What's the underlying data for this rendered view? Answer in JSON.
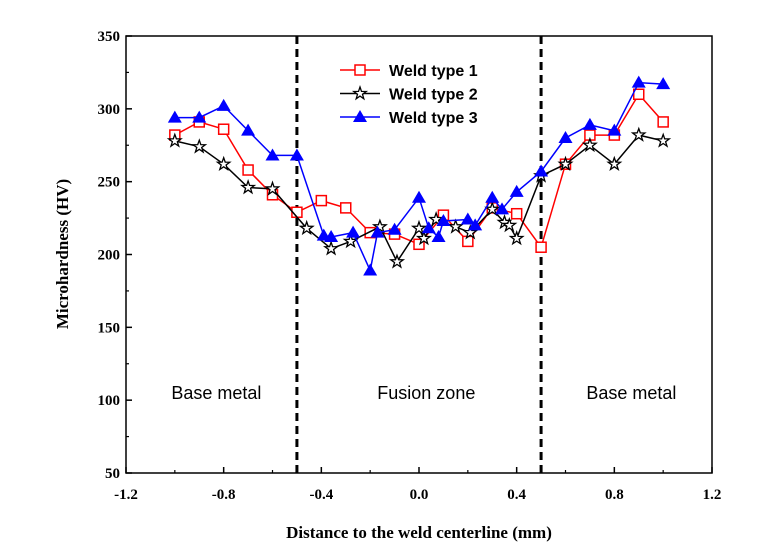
{
  "chart_data": {
    "type": "line",
    "title": "",
    "xlabel": "Distance to the weld centerline (mm)",
    "ylabel": "Microhardness (HV)",
    "xlim": [
      -1.2,
      1.2
    ],
    "ylim": [
      50,
      350
    ],
    "xticks": [
      "-1.2",
      "-0.8",
      "-0.4",
      "0.0",
      "0.4",
      "0.8",
      "1.2"
    ],
    "yticks": [
      "50",
      "100",
      "150",
      "200",
      "250",
      "300",
      "350"
    ],
    "grid": false,
    "legend_position": "top-center",
    "vlines": [
      -0.5,
      0.5
    ],
    "annotations": [
      {
        "text": "Base metal",
        "x": -0.83,
        "y": 105
      },
      {
        "text": "Fusion zone",
        "x": 0.03,
        "y": 105
      },
      {
        "text": "Base metal",
        "x": 0.87,
        "y": 105
      }
    ],
    "series": [
      {
        "name": "Weld type 1",
        "color": "#ff0000",
        "marker": "open-square",
        "x": [
          -1.0,
          -0.9,
          -0.8,
          -0.7,
          -0.6,
          -0.5,
          -0.4,
          -0.3,
          -0.2,
          -0.1,
          0.0,
          0.1,
          0.2,
          0.3,
          0.4,
          0.5,
          0.6,
          0.7,
          0.8,
          0.9,
          1.0
        ],
        "y": [
          282,
          291,
          286,
          258,
          241,
          229,
          237,
          232,
          215,
          214,
          207,
          227,
          209,
          232,
          228,
          205,
          262,
          282,
          282,
          310,
          291
        ]
      },
      {
        "name": "Weld type 2",
        "color": "#000000",
        "marker": "open-star",
        "x": [
          -1.0,
          -0.9,
          -0.8,
          -0.7,
          -0.6,
          -0.46,
          -0.36,
          -0.28,
          -0.16,
          -0.09,
          0.0,
          0.02,
          0.07,
          0.15,
          0.21,
          0.3,
          0.35,
          0.37,
          0.4,
          0.5,
          0.6,
          0.7,
          0.8,
          0.9,
          1.0
        ],
        "y": [
          278,
          274,
          262,
          246,
          245,
          218,
          204,
          209,
          219,
          195,
          218,
          211,
          224,
          219,
          215,
          231,
          222,
          220,
          211,
          254,
          262,
          275,
          262,
          282,
          278
        ]
      },
      {
        "name": "Weld type 3",
        "color": "#0000ff",
        "marker": "filled-triangle",
        "x": [
          -1.0,
          -0.9,
          -0.8,
          -0.7,
          -0.6,
          -0.5,
          -0.39,
          -0.36,
          -0.27,
          -0.2,
          -0.17,
          -0.1,
          0.0,
          0.04,
          0.08,
          0.1,
          0.2,
          0.23,
          0.3,
          0.34,
          0.4,
          0.5,
          0.6,
          0.7,
          0.8,
          0.9,
          1.0
        ],
        "y": [
          294,
          294,
          302,
          285,
          268,
          268,
          213,
          212,
          215,
          189,
          215,
          217,
          239,
          218,
          212,
          223,
          224,
          220,
          239,
          231,
          243,
          257,
          280,
          289,
          285,
          318,
          317
        ]
      }
    ]
  }
}
